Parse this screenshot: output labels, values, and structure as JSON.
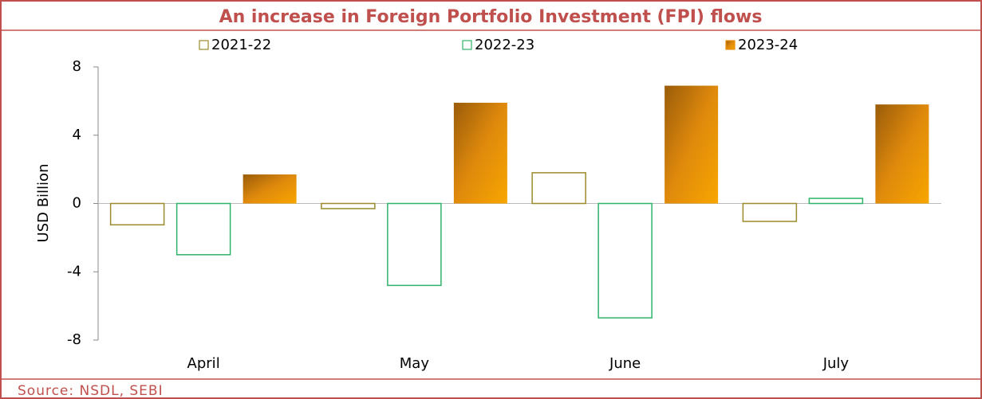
{
  "chart_data": {
    "type": "bar",
    "title": "An increase in Foreign Portfolio Investment (FPI) flows",
    "ylabel": "USD Billion",
    "source": "Source: NSDL, SEBI",
    "categories": [
      "April",
      "May",
      "June",
      "July"
    ],
    "series": [
      {
        "name": "2021-22",
        "color": "#9c8a2c",
        "style": "outline",
        "values": [
          -1.25,
          -0.3,
          1.8,
          -1.05
        ]
      },
      {
        "name": "2022-23",
        "color": "#2fb36a",
        "style": "outline",
        "values": [
          -3,
          -4.8,
          -6.7,
          0.3
        ]
      },
      {
        "name": "2023-24",
        "color": "#e8900a",
        "style": "gradient",
        "values": [
          1.7,
          5.9,
          6.9,
          5.8
        ]
      }
    ],
    "ylim": [
      -8,
      8
    ],
    "yticks": [
      -8,
      -4,
      0,
      4,
      8
    ],
    "grid": false,
    "legend": "top"
  }
}
